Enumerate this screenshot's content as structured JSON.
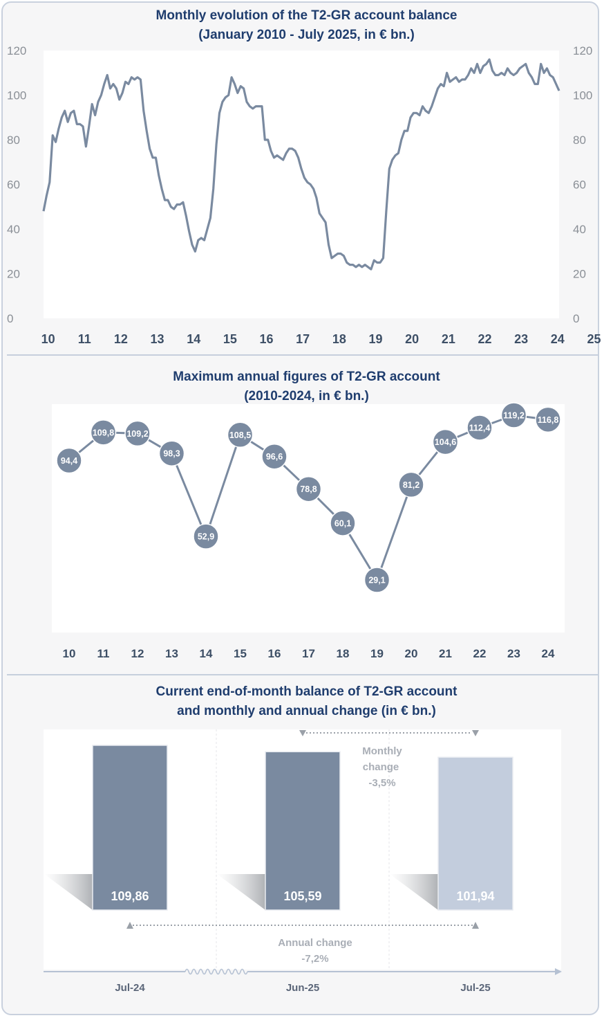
{
  "chart_data": [
    {
      "type": "line",
      "title": "Monthly evolution of the T2-GR account balance",
      "subtitle": "(January 2010 - July 2025, in € bn.)",
      "ylim": [
        0,
        120
      ],
      "yticks": [
        0,
        20,
        40,
        60,
        80,
        100,
        120
      ],
      "xticks": [
        "10",
        "11",
        "12",
        "13",
        "14",
        "15",
        "16",
        "17",
        "18",
        "19",
        "20",
        "21",
        "22",
        "23",
        "24",
        "25"
      ],
      "x_start": "2010-01",
      "x_end": "2025-07",
      "grid": false,
      "line_color": "#7a8aa0",
      "series": [
        {
          "values": [
            48,
            55,
            61,
            82,
            79,
            85,
            90,
            93,
            88,
            92,
            93,
            87,
            87,
            86,
            77,
            86,
            96,
            91,
            97,
            100,
            105,
            109,
            103,
            105,
            103,
            98,
            101,
            106,
            105,
            108,
            107,
            108,
            107,
            93,
            84,
            76,
            72,
            72,
            64,
            58,
            53,
            53,
            50,
            49,
            51,
            51,
            52,
            46,
            39,
            33,
            30,
            35,
            36,
            35,
            40,
            45,
            58,
            78,
            92,
            97,
            99,
            100,
            108,
            105,
            101,
            104,
            103,
            97,
            95,
            94,
            95,
            95,
            95,
            80,
            80,
            75,
            72,
            73,
            72,
            71,
            74,
            76,
            76,
            75,
            72,
            67,
            63,
            61,
            60,
            58,
            54,
            47,
            45,
            43,
            33,
            27,
            28,
            29,
            29,
            28,
            25,
            24,
            24,
            23,
            24,
            23,
            24,
            23,
            22,
            26,
            25,
            25,
            27,
            48,
            67,
            71,
            73,
            74,
            80,
            84,
            84,
            90,
            92,
            92,
            91,
            95,
            93,
            92,
            95,
            99,
            103,
            105,
            104,
            110,
            106,
            107,
            108,
            106,
            107,
            107,
            109,
            112,
            110,
            114,
            110,
            113,
            114,
            116,
            111,
            109,
            109,
            110,
            109,
            112,
            110,
            109,
            110,
            112,
            113,
            114,
            110,
            108,
            105,
            105,
            114,
            110,
            112,
            109,
            108,
            105,
            102
          ]
        }
      ]
    },
    {
      "type": "line",
      "title": "Maximum annual figures of T2-GR account",
      "subtitle": "(2010-2024, in € bn.)",
      "categories": [
        "10",
        "11",
        "12",
        "13",
        "14",
        "15",
        "16",
        "17",
        "18",
        "19",
        "20",
        "21",
        "22",
        "23",
        "24"
      ],
      "series": [
        {
          "values": [
            94.4,
            109.8,
            109.2,
            98.3,
            52.9,
            108.5,
            96.6,
            78.8,
            60.1,
            29.1,
            81.2,
            104.6,
            112.4,
            119.2,
            116.8
          ]
        }
      ],
      "data_labels": [
        "94,4",
        "109,8",
        "109,2",
        "98,3",
        "52,9",
        "108,5",
        "96,6",
        "78,8",
        "60,1",
        "29,1",
        "81,2",
        "104,6",
        "112,4",
        "119,2",
        "116,8"
      ],
      "marker_color": "#7a8aa0",
      "line_color": "#7a8aa0"
    },
    {
      "type": "bar",
      "title": "Current end-of-month balance of T2-GR account",
      "subtitle": "and monthly and annual change (in € bn.)",
      "categories": [
        "Jul-24",
        "Jun-25",
        "Jul-25"
      ],
      "values": [
        109.86,
        105.59,
        101.94
      ],
      "data_labels": [
        "109,86",
        "105,59",
        "101,94"
      ],
      "bar_colors": [
        "#7a8aa0",
        "#7a8aa0",
        "#c3cddd"
      ],
      "annotations": {
        "monthly_label": "Monthly",
        "monthly_label2": "change",
        "monthly_value": "-3,5%",
        "annual_label": "Annual change",
        "annual_value": "-7,2%"
      }
    }
  ]
}
